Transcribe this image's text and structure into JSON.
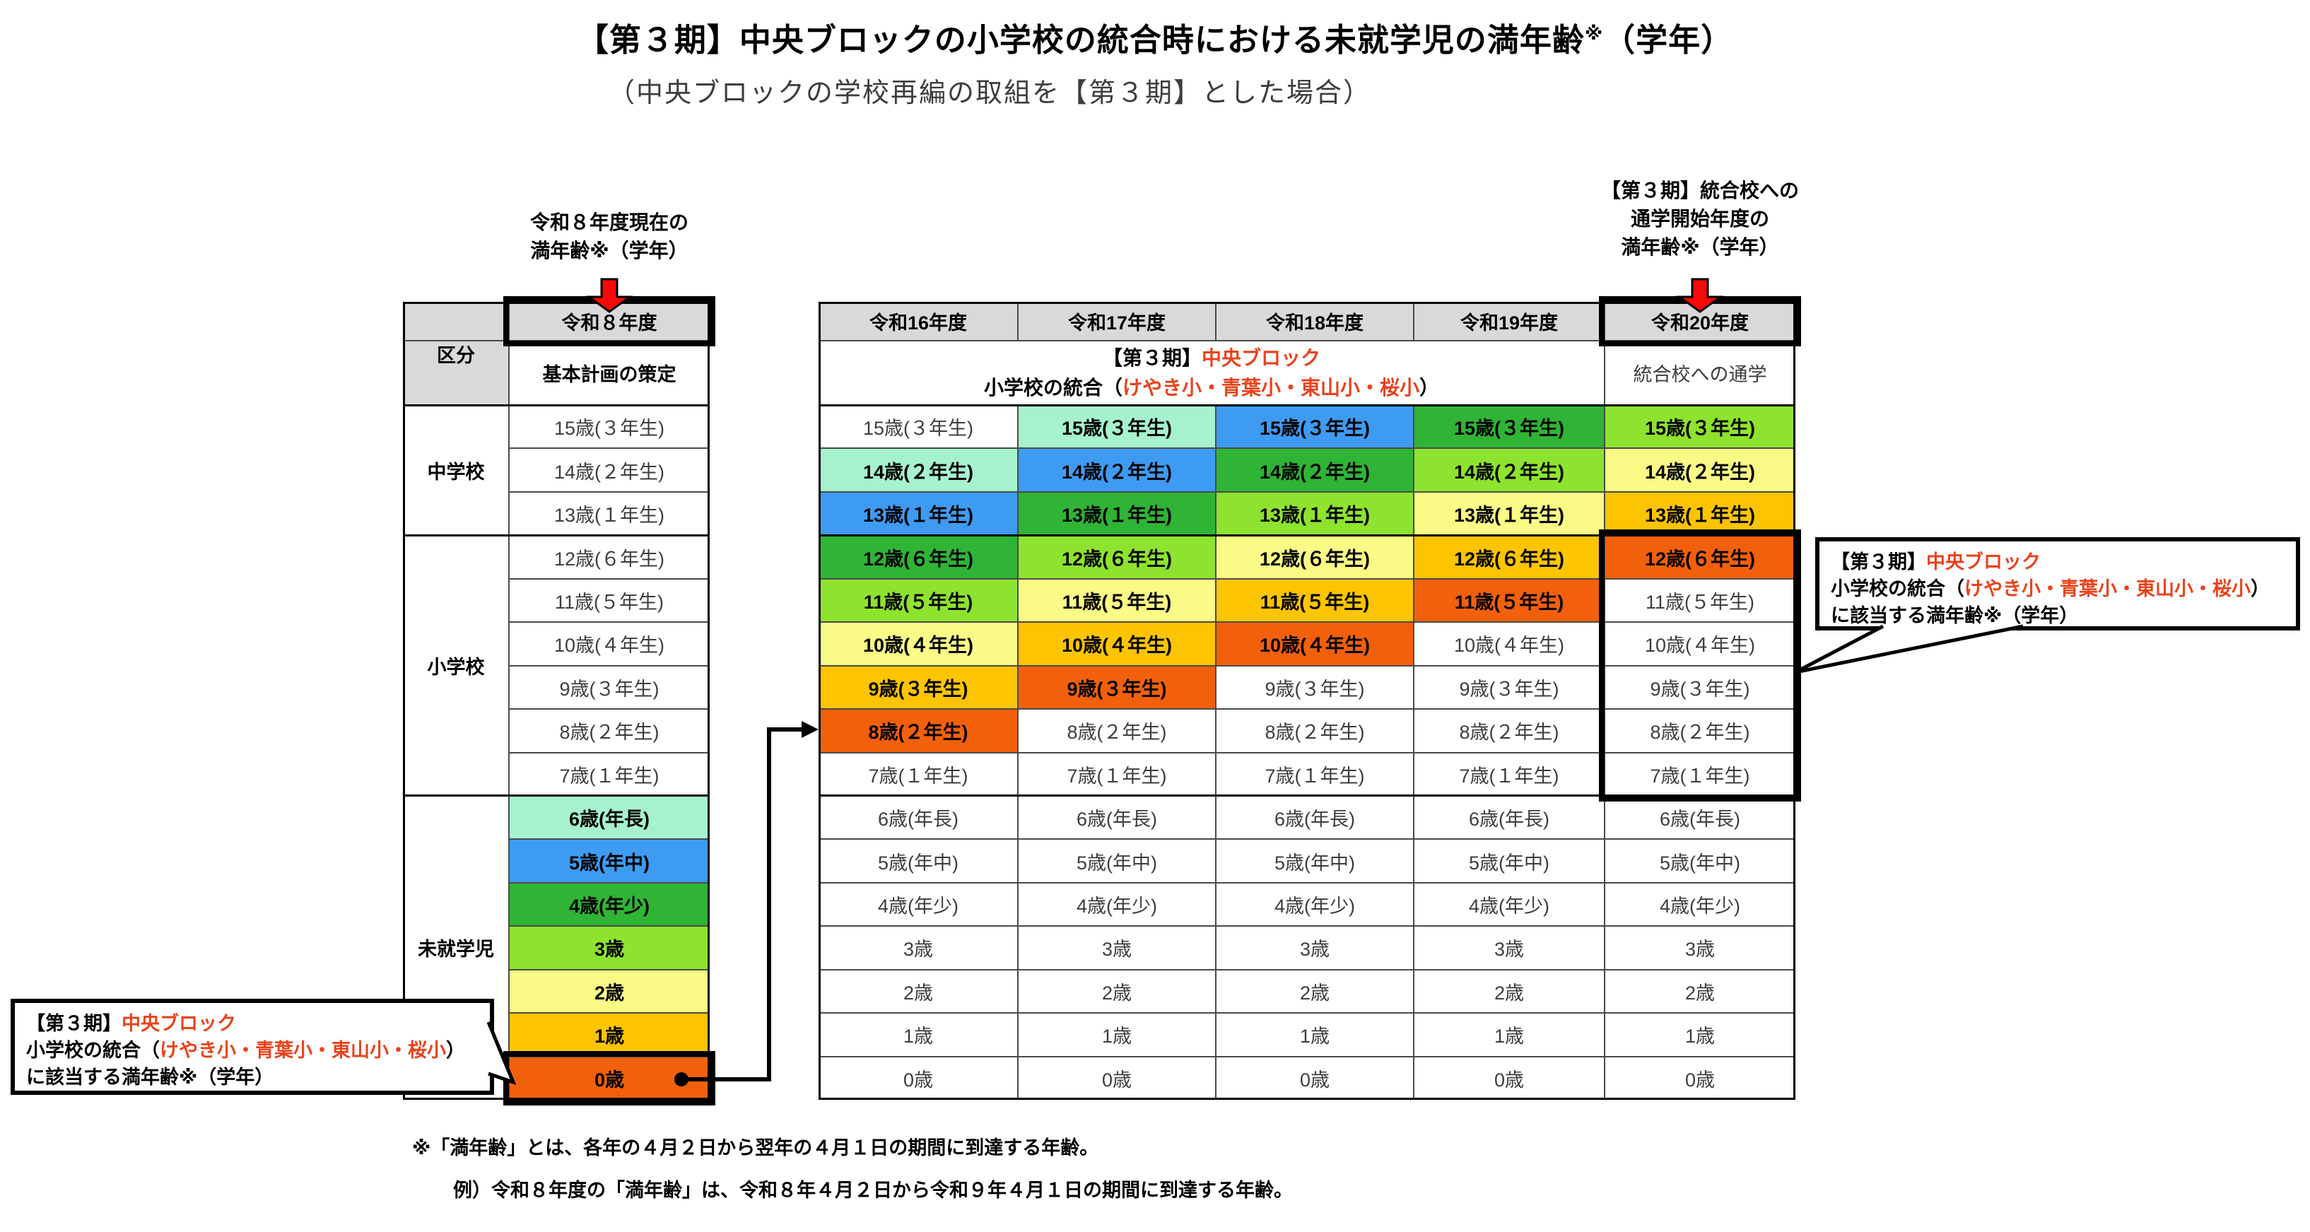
{
  "title": {
    "main": "【第３期】中央ブロックの小学校の統合時における未就学児の満年齢",
    "sup": "※",
    "tail": "（学年）"
  },
  "subtitle": "（中央ブロックの学校再編の取組を【第３期】とした場合）",
  "annotations": {
    "left": {
      "lines": [
        "令和８年度現在の",
        "満年齢※（学年）"
      ]
    },
    "right": {
      "lines": [
        "【第３期】統合校への",
        "通学開始年度の",
        "満年齢※（学年）"
      ]
    }
  },
  "left_table": {
    "corner_label": "区分",
    "year_header": "令和８年度",
    "subheader": "基本計画の策定",
    "groups": [
      {
        "label": "中学校",
        "span": 3
      },
      {
        "label": "小学校",
        "span": 6
      },
      {
        "label": "未就学児",
        "span": 7
      }
    ]
  },
  "main_table": {
    "year_headers": [
      "令和16年度",
      "令和17年度",
      "令和18年度",
      "令和19年度",
      "令和20年度"
    ],
    "merged_header": {
      "line1": [
        {
          "text": "【第３期】",
          "red": false
        },
        {
          "text": "中央ブロック",
          "red": true
        }
      ],
      "line2": [
        {
          "text": "小学校の統合（",
          "red": false
        },
        {
          "text": "けやき小・青葉小・東山小・桜小",
          "red": true
        },
        {
          "text": "）",
          "red": false
        }
      ]
    },
    "last_col_subheader": "統合校への通学"
  },
  "rows": [
    {
      "label": "15歳(３年生)",
      "left_color": null,
      "main_colors": [
        null,
        "aqua",
        "blue",
        "green",
        "yg"
      ]
    },
    {
      "label": "14歳(２年生)",
      "left_color": null,
      "main_colors": [
        "aqua",
        "blue",
        "green",
        "yg",
        "ly"
      ]
    },
    {
      "label": "13歳(１年生)",
      "left_color": null,
      "main_colors": [
        "blue",
        "green",
        "yg",
        "ly",
        "amber"
      ]
    },
    {
      "label": "12歳(６年生)",
      "left_color": null,
      "main_colors": [
        "green",
        "yg",
        "ly",
        "amber",
        "orange"
      ]
    },
    {
      "label": "11歳(５年生)",
      "left_color": null,
      "main_colors": [
        "yg",
        "ly",
        "amber",
        "orange",
        null
      ]
    },
    {
      "label": "10歳(４年生)",
      "left_color": null,
      "main_colors": [
        "ly",
        "amber",
        "orange",
        null,
        null
      ]
    },
    {
      "label": "9歳(３年生)",
      "left_color": null,
      "main_colors": [
        "amber",
        "orange",
        null,
        null,
        null
      ]
    },
    {
      "label": "8歳(２年生)",
      "left_color": null,
      "main_colors": [
        "orange",
        null,
        null,
        null,
        null
      ]
    },
    {
      "label": "7歳(１年生)",
      "left_color": null,
      "main_colors": [
        null,
        null,
        null,
        null,
        null
      ]
    },
    {
      "label": "6歳(年長)",
      "left_color": "aqua",
      "main_colors": [
        null,
        null,
        null,
        null,
        null
      ]
    },
    {
      "label": "5歳(年中)",
      "left_color": "blue",
      "main_colors": [
        null,
        null,
        null,
        null,
        null
      ]
    },
    {
      "label": "4歳(年少)",
      "left_color": "green",
      "main_colors": [
        null,
        null,
        null,
        null,
        null
      ]
    },
    {
      "label": "3歳",
      "left_color": "yg",
      "main_colors": [
        null,
        null,
        null,
        null,
        null
      ]
    },
    {
      "label": "2歳",
      "left_color": "ly",
      "main_colors": [
        null,
        null,
        null,
        null,
        null
      ]
    },
    {
      "label": "1歳",
      "left_color": "amber",
      "main_colors": [
        null,
        null,
        null,
        null,
        null
      ]
    },
    {
      "label": "0歳",
      "left_color": "orange",
      "main_colors": [
        null,
        null,
        null,
        null,
        null
      ]
    }
  ],
  "callouts": {
    "left": {
      "lines": [
        [
          {
            "text": "【第３期】",
            "red": false
          },
          {
            "text": "中央ブロック",
            "red": true
          }
        ],
        [
          {
            "text": "小学校の統合（",
            "red": false
          },
          {
            "text": "けやき小・青葉小・東山小・桜小",
            "red": true
          },
          {
            "text": "）",
            "red": false
          }
        ],
        [
          {
            "text": "に該当する満年齢※（学年）",
            "red": false
          }
        ]
      ]
    },
    "right": {
      "lines": [
        [
          {
            "text": "【第３期】",
            "red": false
          },
          {
            "text": "中央ブロック",
            "red": true
          }
        ],
        [
          {
            "text": "小学校の統合（",
            "red": false
          },
          {
            "text": "けやき小・青葉小・東山小・桜小",
            "red": true
          },
          {
            "text": "）",
            "red": false
          }
        ],
        [
          {
            "text": "に該当する満年齢※（学年）",
            "red": false
          }
        ]
      ]
    }
  },
  "footnotes": [
    "※「満年齢」とは、各年の４月２日から翌年の４月１日の期間に到達する年齢。",
    "例）令和８年度の「満年齢」は、令和８年４月２日から令和９年４月１日の期間に到達する年齢。"
  ],
  "colors": {
    "header_gray": "#d9d9d9",
    "red_text": "#e8431c",
    "arrow_red": "#f80909",
    "palette": {
      "aqua": "#a6f2ce",
      "blue": "#3e9bf2",
      "green": "#2fb435",
      "yg": "#8ee32f",
      "ly": "#fafa86",
      "amber": "#fdc401",
      "orange": "#f3600b"
    }
  }
}
